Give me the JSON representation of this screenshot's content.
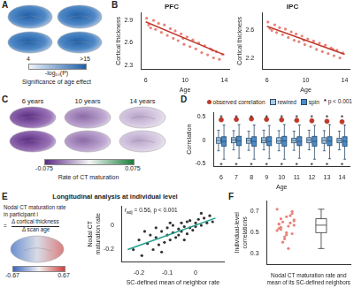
{
  "figure": {
    "panel_labels": [
      "A",
      "B",
      "C",
      "D",
      "E",
      "F"
    ],
    "A": {
      "colorbar": {
        "range": [
          4,
          15
        ],
        "ticks": [
          4,
          {
            "value": 15,
            "label": ">15"
          }
        ]
      },
      "colorbar_label": "-log₁₀(P)",
      "colorbar_title": "Significance of age effect"
    },
    "C": {
      "map_titles": [
        "6 years",
        "10 years",
        "14 years"
      ],
      "colorbar": {
        "range": [
          -0.075,
          0.075
        ],
        "ticks": [
          -0.075,
          0.075
        ]
      },
      "colorbar_title": "Rate of CT maturation"
    },
    "E": {
      "title": "Longitudinal analysis at individual level",
      "formula": {
        "lhs": [
          "Nodal CT maturation rate",
          "in participant i"
        ],
        "equals": "=",
        "numerator": "Δ cortical thickness",
        "denominator": "Δ scan age"
      },
      "colorbar": {
        "range": [
          -0.67,
          0.67
        ],
        "ticks": [
          -0.67,
          0.67
        ]
      }
    }
  },
  "chart_data": [
    {
      "type": "scatter",
      "title": "PFC",
      "xlabel": "Age",
      "ylabel": "Cortical thickness",
      "xlim": [
        5.5,
        14.5
      ],
      "xticks": [
        6,
        10,
        14
      ],
      "ylim": [
        2.25,
        3.0
      ],
      "yticks": [
        2.3,
        2.6,
        2.9
      ],
      "grid": false,
      "series": [
        {
          "x": [
            6.1,
            6.3,
            6.5,
            6.8,
            7.0,
            7.3,
            7.6,
            7.9,
            8.2,
            8.5,
            8.8,
            9.0,
            9.3,
            9.6,
            9.8,
            9.9,
            10.2,
            10.5,
            10.8,
            11.1,
            11.4,
            11.7,
            12.0,
            12.3,
            12.6,
            12.8,
            12.9,
            13.2,
            13.5,
            13.8
          ],
          "values": [
            2.93,
            2.84,
            2.8,
            2.9,
            2.78,
            2.86,
            2.74,
            2.84,
            2.7,
            2.79,
            2.66,
            2.76,
            2.63,
            2.72,
            2.66,
            2.58,
            2.68,
            2.55,
            2.64,
            2.52,
            2.6,
            2.47,
            2.56,
            2.44,
            2.52,
            2.5,
            2.4,
            2.48,
            2.38,
            2.45
          ],
          "color": "#e8837a",
          "marker": "circle"
        },
        {
          "x": [
            6,
            14
          ],
          "values": [
            2.88,
            2.44
          ],
          "type": "line",
          "color": "#c0392b",
          "line_style": "solid"
        }
      ]
    },
    {
      "type": "scatter",
      "title": "IPC",
      "xlabel": "Age",
      "ylabel": "Cortical thickness",
      "xlim": [
        5.5,
        14.5
      ],
      "xticks": [
        6,
        10,
        14
      ],
      "ylim": [
        2.05,
        2.85
      ],
      "yticks": [
        2.2,
        2.6
      ],
      "grid": false,
      "series": [
        {
          "x": [
            6.1,
            6.3,
            6.5,
            6.8,
            7.0,
            7.3,
            7.6,
            7.9,
            8.2,
            8.5,
            8.8,
            9.0,
            9.3,
            9.6,
            9.8,
            9.9,
            10.2,
            10.5,
            10.8,
            11.1,
            11.4,
            11.7,
            12.0,
            12.3,
            12.6,
            12.8,
            12.9,
            13.2,
            13.5,
            13.8
          ],
          "values": [
            2.72,
            2.63,
            2.6,
            2.68,
            2.57,
            2.64,
            2.54,
            2.62,
            2.5,
            2.58,
            2.46,
            2.55,
            2.44,
            2.52,
            2.46,
            2.4,
            2.48,
            2.37,
            2.45,
            2.33,
            2.42,
            2.3,
            2.39,
            2.27,
            2.35,
            2.33,
            2.24,
            2.32,
            2.21,
            2.28
          ],
          "color": "#e8837a",
          "marker": "circle"
        },
        {
          "x": [
            6,
            14
          ],
          "values": [
            2.66,
            2.26
          ],
          "type": "line",
          "color": "#c0392b",
          "line_style": "solid"
        }
      ]
    },
    {
      "type": "box",
      "xlabel": "Age",
      "ylabel": "Correlation",
      "categories": [
        "6",
        "7",
        "8",
        "9",
        "10",
        "11",
        "12",
        "13",
        "14"
      ],
      "ylim": [
        -0.55,
        0.6
      ],
      "yticks": [
        -0.5,
        0,
        0.5
      ],
      "grid": false,
      "legend": "upper right",
      "series": [
        {
          "name": "observed correlation",
          "type": "scatter",
          "color": "#c0392b",
          "marker": "circle",
          "values": [
            0.44,
            0.45,
            0.46,
            0.45,
            0.44,
            0.43,
            0.42,
            0.41,
            0.4
          ]
        },
        {
          "name": "rewired",
          "color": "#a9cbe6",
          "q1": [
            -0.06,
            -0.05,
            -0.06,
            -0.05,
            -0.06,
            -0.05,
            -0.05,
            -0.06,
            -0.05
          ],
          "median": [
            0.0,
            0.01,
            0.0,
            0.0,
            -0.01,
            0.0,
            0.01,
            0.0,
            0.0
          ],
          "q3": [
            0.06,
            0.06,
            0.05,
            0.06,
            0.06,
            0.05,
            0.06,
            0.06,
            0.05
          ],
          "whisker_low": [
            -0.22,
            -0.2,
            -0.21,
            -0.2,
            -0.22,
            -0.21,
            -0.2,
            -0.22,
            -0.2
          ],
          "whisker_high": [
            0.22,
            0.21,
            0.2,
            0.22,
            0.21,
            0.2,
            0.22,
            0.21,
            0.2
          ]
        },
        {
          "name": "spin",
          "color": "#4a8bc9",
          "q1": [
            -0.12,
            -0.11,
            -0.12,
            -0.11,
            -0.12,
            -0.11,
            -0.12,
            -0.11,
            -0.12
          ],
          "median": [
            -0.02,
            -0.01,
            -0.02,
            -0.02,
            -0.01,
            -0.02,
            -0.02,
            -0.01,
            -0.02
          ],
          "q3": [
            0.08,
            0.09,
            0.08,
            0.08,
            0.09,
            0.08,
            0.09,
            0.08,
            0.08
          ],
          "whisker_low": [
            -0.4,
            -0.38,
            -0.4,
            -0.39,
            -0.4,
            -0.38,
            -0.4,
            -0.39,
            -0.4
          ],
          "whisker_high": [
            0.33,
            0.34,
            0.33,
            0.32,
            0.34,
            0.33,
            0.32,
            0.34,
            0.33
          ]
        }
      ],
      "annotations": [
        {
          "text": "*",
          "y": 0.52
        },
        {
          "text": "*",
          "y": -0.5
        }
      ],
      "legend_note": {
        "marker": "*",
        "label": "p < 0.001"
      }
    },
    {
      "type": "scatter",
      "xlabel": "SC-defined mean of neighbor rate",
      "ylabel": "Nodal CT maturation rate",
      "xlim": [
        -0.26,
        0.1
      ],
      "xticks": [
        -0.2,
        -0.1,
        0
      ],
      "ylim": [
        -0.3,
        0.16
      ],
      "yticks": [
        -0.2,
        0
      ],
      "grid": false,
      "series": [
        {
          "x": [
            -0.22,
            -0.2,
            -0.19,
            -0.17,
            -0.16,
            -0.15,
            -0.14,
            -0.13,
            -0.12,
            -0.11,
            -0.1,
            -0.1,
            -0.09,
            -0.08,
            -0.08,
            -0.07,
            -0.06,
            -0.06,
            -0.05,
            -0.05,
            -0.04,
            -0.03,
            -0.03,
            -0.02,
            -0.02,
            -0.01,
            0.0,
            0.0,
            0.01,
            0.02,
            0.03,
            0.04,
            0.05,
            0.06,
            -0.12,
            -0.18,
            -0.04,
            0.02,
            -0.09,
            -0.14
          ],
          "values": [
            -0.2,
            -0.12,
            -0.25,
            -0.15,
            -0.08,
            -0.2,
            -0.1,
            -0.16,
            -0.05,
            -0.14,
            -0.08,
            -0.02,
            -0.12,
            -0.06,
            0.0,
            -0.1,
            -0.03,
            -0.08,
            0.02,
            -0.05,
            -0.01,
            -0.07,
            0.03,
            -0.02,
            0.04,
            -0.04,
            0.02,
            -0.01,
            0.05,
            0.0,
            0.06,
            0.02,
            0.08,
            0.03,
            -0.22,
            -0.05,
            -0.12,
            0.1,
            0.02,
            -0.02
          ],
          "color": "#333333",
          "marker": "circle"
        },
        {
          "x": [
            -0.24,
            0.07
          ],
          "values": [
            -0.2,
            0.06
          ],
          "type": "line",
          "color": "#1f9e89",
          "line_style": "solid"
        }
      ],
      "annotation": {
        "text": "r",
        "subscript": "adj",
        "rest": " = 0.56, p < 0.001"
      }
    },
    {
      "type": "box",
      "xlabel": "Nodal CT maturation rate and mean of its SC-defined neighbors",
      "ylabel": "Individual-level correlations",
      "ylim": [
        0.2,
        0.8
      ],
      "yticks": [
        0.3,
        0.5,
        0.7
      ],
      "grid": false,
      "tick_labels": "y",
      "series": [
        {
          "values": [
            0.62,
            0.55,
            0.48,
            0.7,
            0.58,
            0.44,
            0.66,
            0.52,
            0.6,
            0.35,
            0.57,
            0.63,
            0.5,
            0.68,
            0.54,
            0.46,
            0.59,
            0.72,
            0.41,
            0.56,
            0.61,
            0.53,
            0.65,
            0.49,
            0.58
          ],
          "color": "#e8837a",
          "marker": "circle",
          "q1": 0.5,
          "median": 0.57,
          "q3": 0.63,
          "whisker_low": 0.35,
          "whisker_high": 0.72
        }
      ]
    }
  ]
}
